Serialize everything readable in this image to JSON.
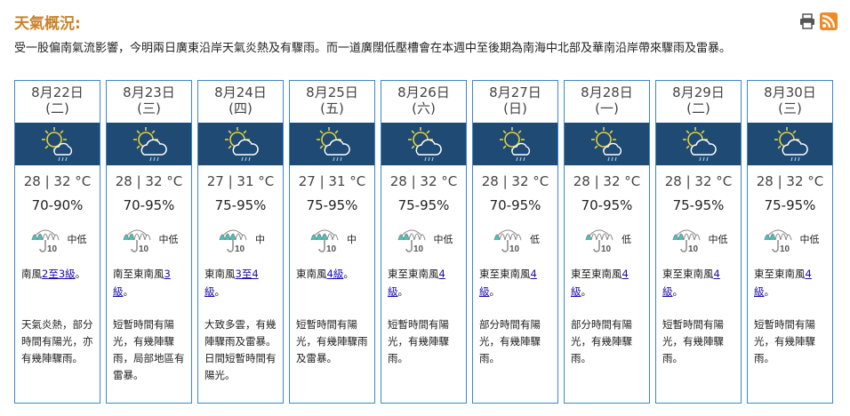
{
  "header": {
    "title": "天氣概況:",
    "print_icon": "printer-icon",
    "rss_icon": "rss-icon"
  },
  "summary": "受一股偏南氣流影響，今明兩日廣東沿岸天氣炎熱及有驟雨。而一道廣闊低壓槽會在本週中至後期為南海中北部及華南沿岸帶來驟雨及雷暴。",
  "colors": {
    "title": "#c8842c",
    "band": "#1e4a73",
    "border": "#3d87c6",
    "psr_fill": "#3ec8b8",
    "link": "#1a0dab"
  },
  "days": [
    {
      "date": "8月22日",
      "weekday": "(二)",
      "icon": "sunny-periods-showers",
      "temp": "28 | 32 °C",
      "rh": "70-90%",
      "psr": "中低",
      "wind_pre": "南風",
      "wind_link": "2至3級",
      "wind_post": "。",
      "desc": "天氣炎熱，部分時間有陽光，亦有幾陣驟雨。"
    },
    {
      "date": "8月23日",
      "weekday": "(三)",
      "icon": "sunny-intervals-showers",
      "temp": "28 | 32 °C",
      "rh": "70-95%",
      "psr": "中低",
      "wind_pre": "南至東南風",
      "wind_link": "3級",
      "wind_post": "。",
      "desc": "短暫時間有陽光，有幾陣驟雨，局部地區有雷暴。"
    },
    {
      "date": "8月24日",
      "weekday": "(四)",
      "icon": "sunny-intervals-showers",
      "temp": "27 | 31 °C",
      "rh": "75-95%",
      "psr": "中",
      "wind_pre": "東南風",
      "wind_link": "3至4級",
      "wind_post": "。",
      "desc": "大致多雲，有幾陣驟雨及雷暴。日間短暫時間有陽光。"
    },
    {
      "date": "8月25日",
      "weekday": "(五)",
      "icon": "sunny-intervals-showers",
      "temp": "27 | 31 °C",
      "rh": "75-95%",
      "psr": "中",
      "wind_pre": "東南風",
      "wind_link": "4級",
      "wind_post": "。",
      "desc": "短暫時間有陽光，有幾陣驟雨及雷暴。"
    },
    {
      "date": "8月26日",
      "weekday": "(六)",
      "icon": "sunny-intervals-showers",
      "temp": "28 | 32 °C",
      "rh": "75-95%",
      "psr": "中低",
      "wind_pre": "東至東南風",
      "wind_link": "4級",
      "wind_post": "。",
      "desc": "短暫時間有陽光，有幾陣驟雨。"
    },
    {
      "date": "8月27日",
      "weekday": "(日)",
      "icon": "sunny-periods-showers",
      "temp": "28 | 32 °C",
      "rh": "70-95%",
      "psr": "低",
      "wind_pre": "東至東南風",
      "wind_link": "4級",
      "wind_post": "。",
      "desc": "部分時間有陽光，有幾陣驟雨。"
    },
    {
      "date": "8月28日",
      "weekday": "(一)",
      "icon": "sunny-periods-showers",
      "temp": "28 | 32 °C",
      "rh": "70-95%",
      "psr": "低",
      "wind_pre": "東至東南風",
      "wind_link": "4級",
      "wind_post": "。",
      "desc": "部分時間有陽光，有幾陣驟雨。"
    },
    {
      "date": "8月29日",
      "weekday": "(二)",
      "icon": "sunny-intervals-showers",
      "temp": "28 | 32 °C",
      "rh": "75-95%",
      "psr": "中低",
      "wind_pre": "東至東南風",
      "wind_link": "4級",
      "wind_post": "。",
      "desc": "短暫時間有陽光，有幾陣驟雨。"
    },
    {
      "date": "8月30日",
      "weekday": "(三)",
      "icon": "sunny-intervals-showers",
      "temp": "28 | 32 °C",
      "rh": "75-95%",
      "psr": "中低",
      "wind_pre": "東至東南風",
      "wind_link": "4級",
      "wind_post": "。",
      "desc": "短暫時間有陽光，有幾陣驟雨。"
    }
  ]
}
